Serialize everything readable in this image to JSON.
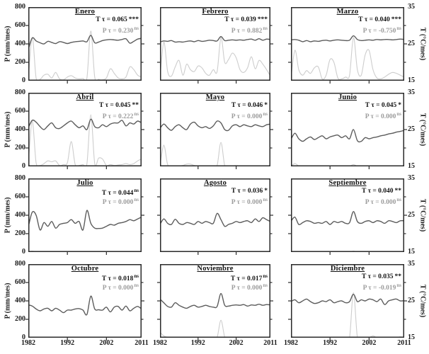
{
  "figure": {
    "left_axis_label": "P (mm/mes)",
    "right_axis_label": "T (°C/mes)",
    "left_axis_ticks": [
      800,
      600,
      400,
      200,
      0
    ],
    "right_axis_ticks": [
      35,
      25,
      15
    ],
    "right_axis_minor_ticks": [
      30,
      20
    ],
    "x_axis_ticks": [
      1982,
      1992,
      2002,
      2011
    ],
    "x_axis_range": [
      1982,
      2011
    ],
    "left_axis_range": [
      0,
      800
    ],
    "right_axis_range": [
      15,
      35
    ],
    "colors": {
      "t_line": "#5c5c5c",
      "p_line": "#cdcdcd",
      "t_annotation": "#121212",
      "p_annotation": "#9c9c9c",
      "axis": "#2a2a2a",
      "background": "#ffffff"
    }
  },
  "chart_data": [
    {
      "type": "line",
      "title": "Enero",
      "x_range": [
        1982,
        2011
      ],
      "annotations": {
        "t_label": "T τ = 0.065",
        "t_sig": "***",
        "p_label": "P τ = 0.230",
        "p_sig": "ns"
      },
      "series": [
        {
          "name": "T",
          "axis": "right",
          "unit": "°C/mes",
          "values": [
            23.5,
            26.6,
            25.8,
            25.3,
            25.0,
            25.7,
            25.4,
            25.1,
            25.6,
            25.4,
            25.1,
            25.4,
            25.6,
            25.7,
            25.8,
            25.6,
            27.3,
            25.3,
            25.5,
            25.9,
            26.1,
            26.2,
            26.1,
            26.0,
            26.2,
            26.4,
            25.2,
            25.7,
            26.3,
            26.5
          ]
        },
        {
          "name": "P",
          "axis": "left",
          "unit": "mm/mes",
          "values": [
            10,
            470,
            30,
            15,
            60,
            70,
            30,
            90,
            20,
            10,
            40,
            55,
            30,
            20,
            25,
            30,
            540,
            40,
            15,
            10,
            30,
            130,
            80,
            30,
            20,
            40,
            150,
            120,
            60,
            40
          ]
        }
      ]
    },
    {
      "type": "line",
      "title": "Febrero",
      "x_range": [
        1982,
        2011
      ],
      "annotations": {
        "t_label": "T τ = 0.039",
        "t_sig": "***",
        "p_label": "P τ = 0.882",
        "p_sig": "ns"
      },
      "series": [
        {
          "name": "T",
          "axis": "right",
          "unit": "°C/mes",
          "values": [
            25.5,
            25.8,
            25.7,
            25.9,
            25.5,
            25.6,
            25.5,
            25.7,
            25.8,
            25.6,
            25.9,
            25.7,
            25.8,
            26.0,
            25.9,
            25.8,
            27.0,
            25.9,
            26.0,
            26.1,
            26.0,
            26.1,
            26.0,
            26.2,
            26.3,
            26.0,
            26.4,
            26.0,
            26.3,
            26.2
          ]
        },
        {
          "name": "P",
          "axis": "left",
          "unit": "mm/mes",
          "values": [
            30,
            420,
            100,
            50,
            150,
            220,
            60,
            180,
            120,
            100,
            160,
            140,
            80,
            60,
            120,
            100,
            470,
            200,
            230,
            300,
            250,
            120,
            90,
            140,
            260,
            130,
            220,
            180,
            120,
            50
          ]
        }
      ]
    },
    {
      "type": "line",
      "title": "Marzo",
      "x_range": [
        1982,
        2011
      ],
      "annotations": {
        "t_label": "T τ = 0.040",
        "t_sig": "***",
        "p_label": "P τ = -0.750",
        "p_sig": "ns"
      },
      "series": [
        {
          "name": "T",
          "axis": "right",
          "unit": "°C/mes",
          "values": [
            26.1,
            26.2,
            26.0,
            25.6,
            25.9,
            25.6,
            25.8,
            25.7,
            25.9,
            26.0,
            25.8,
            26.0,
            26.1,
            26.0,
            25.9,
            26.0,
            27.2,
            26.2,
            25.9,
            26.0,
            26.1,
            26.0,
            26.2,
            26.1,
            26.2,
            26.2,
            26.1,
            26.2,
            26.3,
            26.2
          ]
        },
        {
          "name": "P",
          "axis": "left",
          "unit": "mm/mes",
          "values": [
            20,
            330,
            120,
            60,
            110,
            80,
            140,
            150,
            20,
            60,
            230,
            200,
            30,
            20,
            40,
            60,
            470,
            120,
            60,
            280,
            330,
            120,
            30,
            20,
            40,
            70,
            90,
            80,
            60,
            40
          ]
        }
      ]
    },
    {
      "type": "line",
      "title": "Abril",
      "x_range": [
        1982,
        2011
      ],
      "annotations": {
        "t_label": "T τ = 0.045",
        "t_sig": "**",
        "p_label": "P τ = 0.222",
        "p_sig": "ns"
      },
      "series": [
        {
          "name": "T",
          "axis": "right",
          "unit": "°C/mes",
          "values": [
            25.5,
            27.5,
            27.0,
            25.8,
            25.0,
            26.0,
            26.8,
            25.5,
            25.3,
            26.0,
            26.8,
            27.3,
            26.3,
            25.5,
            26.0,
            25.0,
            27.8,
            25.8,
            25.5,
            26.3,
            25.8,
            26.5,
            26.8,
            26.8,
            27.5,
            26.0,
            26.8,
            26.5,
            27.3,
            26.8
          ]
        },
        {
          "name": "P",
          "axis": "left",
          "unit": "mm/mes",
          "values": [
            30,
            490,
            40,
            10,
            30,
            60,
            50,
            60,
            10,
            20,
            40,
            270,
            20,
            10,
            20,
            30,
            560,
            30,
            90,
            80,
            10,
            20,
            10,
            15,
            20,
            30,
            20,
            30,
            60,
            80
          ]
        }
      ]
    },
    {
      "type": "line",
      "title": "Mayo",
      "x_range": [
        1982,
        2011
      ],
      "annotations": {
        "t_label": "T τ = 0.046",
        "t_sig": "*",
        "p_label": "P τ = 0.000",
        "p_sig": "ns"
      },
      "series": [
        {
          "name": "T",
          "axis": "right",
          "unit": "°C/mes",
          "values": [
            25.3,
            26.5,
            25.5,
            24.8,
            25.8,
            26.3,
            25.5,
            25.0,
            26.5,
            27.0,
            26.0,
            25.5,
            25.8,
            25.3,
            26.0,
            27.3,
            26.8,
            25.0,
            24.8,
            26.0,
            26.3,
            25.8,
            26.3,
            26.0,
            25.8,
            26.3,
            26.0,
            25.8,
            26.3,
            26.5
          ]
        },
        {
          "name": "P",
          "axis": "left",
          "unit": "mm/mes",
          "values": [
            5,
            230,
            20,
            5,
            5,
            5,
            10,
            25,
            25,
            10,
            5,
            5,
            5,
            5,
            5,
            10,
            260,
            10,
            5,
            5,
            10,
            5,
            5,
            5,
            5,
            5,
            5,
            5,
            5,
            5
          ]
        }
      ]
    },
    {
      "type": "line",
      "title": "Junio",
      "x_range": [
        1982,
        2011
      ],
      "annotations": {
        "t_label": "T τ = 0.045",
        "t_sig": "*",
        "p_label": "P τ = 0.000",
        "p_sig": "ns"
      },
      "series": [
        {
          "name": "T",
          "axis": "right",
          "unit": "°C/mes",
          "values": [
            22.3,
            24.0,
            22.5,
            21.8,
            22.5,
            23.0,
            22.3,
            22.8,
            23.3,
            22.5,
            23.0,
            23.3,
            23.5,
            22.8,
            23.3,
            22.5,
            25.0,
            22.0,
            21.8,
            22.8,
            22.5,
            22.8,
            23.0,
            23.3,
            23.5,
            23.8,
            24.0,
            24.3,
            24.5,
            24.8
          ]
        },
        {
          "name": "P",
          "axis": "left",
          "unit": "mm/mes",
          "values": [
            2,
            30,
            5,
            2,
            2,
            2,
            2,
            2,
            2,
            2,
            2,
            2,
            2,
            2,
            2,
            2,
            20,
            2,
            2,
            2,
            2,
            2,
            2,
            2,
            2,
            2,
            2,
            2,
            2,
            2
          ]
        }
      ]
    },
    {
      "type": "line",
      "title": "Julio",
      "x_range": [
        1982,
        2011
      ],
      "annotations": {
        "t_label": "T τ = 0.044",
        "t_sig": "ns",
        "p_label": "P τ = 0.000",
        "p_sig": "ns"
      },
      "series": [
        {
          "name": "T",
          "axis": "right",
          "unit": "°C/mes",
          "values": [
            21.8,
            25.8,
            25.0,
            21.0,
            23.0,
            22.0,
            23.3,
            21.5,
            22.5,
            22.8,
            23.0,
            23.8,
            22.8,
            23.3,
            21.0,
            26.3,
            22.8,
            21.5,
            21.4,
            21.5,
            22.0,
            22.5,
            22.3,
            22.8,
            23.0,
            23.3,
            23.8,
            23.5,
            24.0,
            24.5
          ]
        },
        {
          "name": "P",
          "axis": "left",
          "unit": "mm/mes",
          "values": [
            2,
            10,
            2,
            2,
            2,
            2,
            2,
            2,
            2,
            2,
            2,
            2,
            2,
            2,
            2,
            2,
            5,
            2,
            2,
            2,
            2,
            2,
            2,
            2,
            2,
            2,
            2,
            2,
            2,
            2
          ]
        }
      ]
    },
    {
      "type": "line",
      "title": "Agosto",
      "x_range": [
        1982,
        2011
      ],
      "annotations": {
        "t_label": "T τ = 0.036",
        "t_sig": "*",
        "p_label": "P τ = 0.000",
        "p_sig": "ns"
      },
      "series": [
        {
          "name": "T",
          "axis": "right",
          "unit": "°C/mes",
          "values": [
            22.5,
            24.0,
            22.8,
            22.5,
            23.9,
            22.8,
            22.5,
            23.0,
            22.8,
            22.5,
            23.3,
            22.8,
            23.3,
            23.0,
            22.8,
            25.5,
            23.8,
            22.0,
            22.5,
            22.8,
            23.3,
            23.0,
            23.3,
            23.5,
            23.0,
            24.0,
            23.3,
            24.3,
            23.8,
            23.3
          ]
        },
        {
          "name": "P",
          "axis": "left",
          "unit": "mm/mes",
          "values": [
            2,
            2,
            2,
            2,
            2,
            2,
            2,
            2,
            2,
            2,
            2,
            2,
            2,
            2,
            2,
            2,
            2,
            2,
            2,
            2,
            2,
            2,
            2,
            2,
            2,
            2,
            2,
            2,
            2,
            2
          ]
        }
      ]
    },
    {
      "type": "line",
      "title": "Septiembre",
      "x_range": [
        1982,
        2011
      ],
      "annotations": {
        "t_label": "T τ = 0.040",
        "t_sig": "**",
        "p_label": "P τ = 0.000",
        "p_sig": "ns"
      },
      "series": [
        {
          "name": "T",
          "axis": "right",
          "unit": "°C/mes",
          "values": [
            23.3,
            24.5,
            22.5,
            23.0,
            23.5,
            23.3,
            22.8,
            23.0,
            22.8,
            23.3,
            22.5,
            23.3,
            23.0,
            23.3,
            22.8,
            23.0,
            26.0,
            23.3,
            22.8,
            23.3,
            23.5,
            23.0,
            23.5,
            23.3,
            22.8,
            23.5,
            23.3,
            23.0,
            23.5,
            23.5
          ]
        },
        {
          "name": "P",
          "axis": "left",
          "unit": "mm/mes",
          "values": [
            2,
            2,
            2,
            2,
            2,
            2,
            2,
            2,
            2,
            2,
            2,
            2,
            2,
            2,
            2,
            2,
            10,
            2,
            2,
            2,
            2,
            2,
            2,
            2,
            2,
            2,
            2,
            2,
            2,
            2
          ]
        }
      ]
    },
    {
      "type": "line",
      "title": "Octubre",
      "x_range": [
        1982,
        2011
      ],
      "annotations": {
        "t_label": "T τ = 0.018",
        "t_sig": "ns",
        "p_label": "P τ = 0.000",
        "p_sig": "ns"
      },
      "series": [
        {
          "name": "T",
          "axis": "right",
          "unit": "°C/mes",
          "values": [
            23.9,
            23.6,
            22.8,
            22.3,
            22.8,
            23.0,
            22.3,
            23.0,
            22.5,
            21.8,
            22.5,
            22.5,
            22.8,
            22.9,
            22.5,
            21.3,
            26.3,
            22.8,
            22.6,
            22.5,
            23.3,
            22.0,
            23.3,
            23.5,
            22.5,
            23.6,
            22.3,
            23.0,
            23.5,
            22.8
          ]
        },
        {
          "name": "P",
          "axis": "left",
          "unit": "mm/mes",
          "values": [
            2,
            2,
            2,
            2,
            2,
            2,
            2,
            2,
            2,
            2,
            2,
            2,
            2,
            2,
            2,
            2,
            2,
            2,
            2,
            2,
            2,
            2,
            2,
            2,
            2,
            2,
            2,
            2,
            2,
            2
          ]
        }
      ]
    },
    {
      "type": "line",
      "title": "Noviembre",
      "x_range": [
        1982,
        2011
      ],
      "annotations": {
        "t_label": "T τ = 0.017",
        "t_sig": "ns",
        "p_label": "P τ = 0.000",
        "p_sig": "ns"
      },
      "series": [
        {
          "name": "T",
          "axis": "right",
          "unit": "°C/mes",
          "values": [
            25.5,
            24.5,
            23.5,
            23.3,
            24.5,
            23.8,
            23.3,
            23.0,
            23.5,
            23.8,
            23.3,
            23.5,
            23.8,
            23.5,
            23.3,
            23.5,
            27.0,
            23.8,
            23.6,
            23.8,
            23.9,
            23.8,
            24.0,
            23.6,
            23.9,
            23.8,
            24.1,
            23.8,
            24.0,
            23.9
          ]
        },
        {
          "name": "P",
          "axis": "left",
          "unit": "mm/mes",
          "values": [
            60,
            20,
            5,
            5,
            5,
            5,
            5,
            5,
            5,
            5,
            5,
            5,
            5,
            5,
            5,
            5,
            190,
            10,
            5,
            5,
            5,
            5,
            5,
            5,
            5,
            5,
            5,
            5,
            5,
            5
          ]
        }
      ]
    },
    {
      "type": "line",
      "title": "Diciembre",
      "x_range": [
        1982,
        2011
      ],
      "annotations": {
        "t_label": "T τ = 0.035",
        "t_sig": "**",
        "p_label": "P τ = -0.019",
        "p_sig": "ns"
      },
      "series": [
        {
          "name": "T",
          "axis": "right",
          "unit": "°C/mes",
          "values": [
            24.8,
            25.3,
            24.5,
            25.0,
            25.5,
            24.8,
            24.3,
            24.5,
            25.0,
            24.8,
            25.3,
            24.5,
            24.8,
            25.0,
            24.5,
            24.8,
            26.8,
            24.8,
            25.3,
            25.0,
            25.5,
            25.3,
            24.8,
            25.5,
            24.0,
            25.0,
            25.3,
            25.5,
            25.0,
            25.1
          ]
        },
        {
          "name": "P",
          "axis": "left",
          "unit": "mm/mes",
          "values": [
            15,
            5,
            2,
            2,
            2,
            2,
            2,
            2,
            2,
            2,
            2,
            2,
            2,
            2,
            2,
            2,
            490,
            5,
            2,
            2,
            2,
            20,
            2,
            2,
            2,
            2,
            2,
            2,
            10,
            2
          ]
        }
      ]
    }
  ]
}
